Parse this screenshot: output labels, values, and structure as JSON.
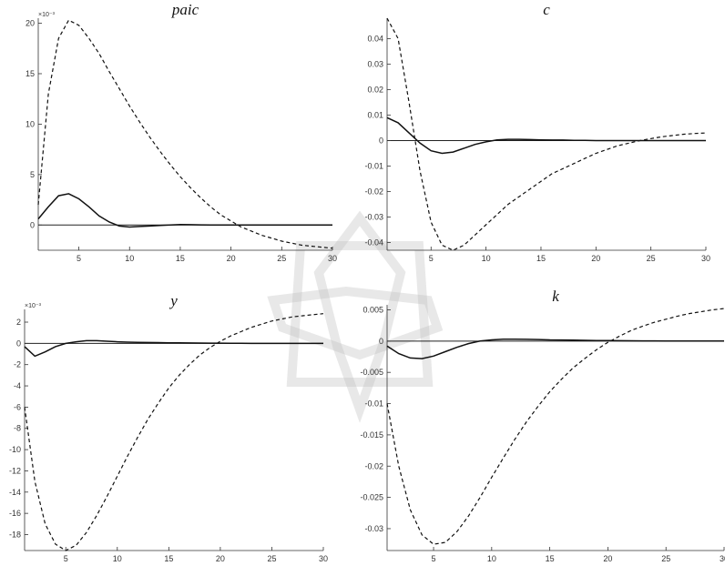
{
  "chart_data": [
    {
      "type": "line",
      "title": "paic",
      "exponent_label": "×10⁻³",
      "xlim": [
        1,
        30
      ],
      "ylim": [
        -2.5,
        20.5
      ],
      "xticks": [
        5,
        10,
        15,
        20,
        25,
        30
      ],
      "yticks": [
        0,
        5,
        10,
        15,
        20
      ],
      "ytick_labels": [
        "0",
        "5",
        "10",
        "15",
        "20"
      ],
      "series": [
        {
          "style": "solid",
          "x": [
            1,
            2,
            3,
            4,
            5,
            6,
            7,
            8,
            9,
            10,
            11,
            12,
            13,
            14,
            15,
            16,
            17,
            18,
            19,
            20,
            21,
            22,
            23,
            24,
            25,
            26,
            27,
            28,
            29,
            30
          ],
          "values": [
            0.6,
            1.8,
            2.9,
            3.1,
            2.6,
            1.8,
            0.9,
            0.3,
            -0.1,
            -0.2,
            -0.15,
            -0.1,
            -0.05,
            0,
            0.05,
            0.03,
            0.02,
            0.01,
            0,
            0,
            0,
            0,
            0,
            0,
            0,
            0,
            0,
            0,
            0,
            0
          ]
        },
        {
          "style": "dashed",
          "x": [
            1,
            2,
            3,
            4,
            5,
            6,
            7,
            8,
            9,
            10,
            11,
            12,
            13,
            14,
            15,
            16,
            17,
            18,
            19,
            20,
            21,
            22,
            23,
            24,
            25,
            26,
            27,
            28,
            29,
            30
          ],
          "values": [
            2.0,
            13.0,
            18.5,
            20.3,
            19.8,
            18.5,
            17.0,
            15.2,
            13.5,
            11.8,
            10.2,
            8.7,
            7.3,
            6.0,
            4.8,
            3.7,
            2.7,
            1.8,
            1.0,
            0.4,
            -0.2,
            -0.6,
            -1.0,
            -1.3,
            -1.6,
            -1.8,
            -2.0,
            -2.1,
            -2.2,
            -2.3
          ]
        }
      ]
    },
    {
      "type": "line",
      "title": "c",
      "exponent_label": "",
      "xlim": [
        1,
        30
      ],
      "ylim": [
        -0.043,
        0.048
      ],
      "xticks": [
        5,
        10,
        15,
        20,
        25,
        30
      ],
      "yticks": [
        0.04,
        0.03,
        0.02,
        0.01,
        0,
        -0.01,
        -0.02,
        -0.03,
        -0.04
      ],
      "ytick_labels": [
        "0.04",
        "0.03",
        "0.02",
        "0.01",
        "0",
        "-0.01",
        "-0.02",
        "-0.03",
        "-0.04"
      ],
      "series": [
        {
          "style": "solid",
          "x": [
            1,
            2,
            3,
            4,
            5,
            6,
            7,
            8,
            9,
            10,
            11,
            12,
            13,
            14,
            15,
            16,
            17,
            18,
            19,
            20,
            21,
            22,
            23,
            24,
            25,
            26,
            27,
            28,
            29,
            30
          ],
          "values": [
            0.009,
            0.007,
            0.003,
            -0.001,
            -0.004,
            -0.005,
            -0.0045,
            -0.003,
            -0.0015,
            -0.0005,
            0.0003,
            0.0005,
            0.0005,
            0.0004,
            0.0003,
            0.0002,
            0.0002,
            0.0001,
            0.0001,
            0,
            0,
            0,
            0,
            0,
            0,
            0,
            0,
            0,
            0,
            0
          ]
        },
        {
          "style": "dashed",
          "x": [
            1,
            2,
            3,
            4,
            5,
            6,
            7,
            8,
            9,
            10,
            11,
            12,
            13,
            14,
            15,
            16,
            17,
            18,
            19,
            20,
            21,
            22,
            23,
            24,
            25,
            26,
            27,
            28,
            29,
            30
          ],
          "values": [
            0.048,
            0.04,
            0.015,
            -0.012,
            -0.032,
            -0.041,
            -0.043,
            -0.041,
            -0.037,
            -0.033,
            -0.029,
            -0.025,
            -0.022,
            -0.019,
            -0.016,
            -0.013,
            -0.011,
            -0.009,
            -0.007,
            -0.005,
            -0.0035,
            -0.002,
            -0.001,
            0,
            0.0008,
            0.0015,
            0.002,
            0.0025,
            0.0028,
            0.003
          ]
        }
      ]
    },
    {
      "type": "line",
      "title": "y",
      "exponent_label": "×10⁻³",
      "xlim": [
        1,
        30
      ],
      "ylim": [
        -19.5,
        3.2
      ],
      "xticks": [
        5,
        10,
        15,
        20,
        25,
        30
      ],
      "yticks": [
        2,
        0,
        -2,
        -4,
        -6,
        -8,
        -10,
        -12,
        -14,
        -16,
        -18
      ],
      "ytick_labels": [
        "2",
        "0",
        "-2",
        "-4",
        "-6",
        "-8",
        "-10",
        "-12",
        "-14",
        "-16",
        "-18"
      ],
      "series": [
        {
          "style": "solid",
          "x": [
            1,
            2,
            3,
            4,
            5,
            6,
            7,
            8,
            9,
            10,
            11,
            12,
            13,
            14,
            15,
            16,
            17,
            18,
            19,
            20,
            21,
            22,
            23,
            24,
            25,
            26,
            27,
            28,
            29,
            30
          ],
          "values": [
            -0.3,
            -1.2,
            -0.8,
            -0.3,
            0,
            0.15,
            0.25,
            0.25,
            0.2,
            0.15,
            0.12,
            0.1,
            0.08,
            0.07,
            0.06,
            0.05,
            0.04,
            0.03,
            0.02,
            0.02,
            0.01,
            0.01,
            0,
            0,
            0,
            0,
            0,
            0,
            0,
            0
          ]
        },
        {
          "style": "dashed",
          "x": [
            1,
            2,
            3,
            4,
            5,
            6,
            7,
            8,
            9,
            10,
            11,
            12,
            13,
            14,
            15,
            16,
            17,
            18,
            19,
            20,
            21,
            22,
            23,
            24,
            25,
            26,
            27,
            28,
            29,
            30
          ],
          "values": [
            -6.0,
            -13.0,
            -17.0,
            -18.9,
            -19.5,
            -19.0,
            -17.8,
            -16.2,
            -14.4,
            -12.5,
            -10.6,
            -8.8,
            -7.1,
            -5.6,
            -4.2,
            -3.0,
            -2.0,
            -1.1,
            -0.4,
            0.2,
            0.7,
            1.1,
            1.5,
            1.8,
            2.1,
            2.3,
            2.5,
            2.6,
            2.7,
            2.8
          ]
        }
      ]
    },
    {
      "type": "line",
      "title": "k",
      "exponent_label": "",
      "xlim": [
        1,
        30
      ],
      "ylim": [
        -0.0335,
        0.0058
      ],
      "xticks": [
        5,
        10,
        15,
        20,
        25,
        30
      ],
      "yticks": [
        0.005,
        0,
        -0.005,
        -0.01,
        -0.015,
        -0.02,
        -0.025,
        -0.03
      ],
      "ytick_labels": [
        "0.005",
        "0",
        "-0.005",
        "-0.01",
        "-0.015",
        "-0.02",
        "-0.025",
        "-0.03"
      ],
      "series": [
        {
          "style": "solid",
          "x": [
            1,
            2,
            3,
            4,
            5,
            6,
            7,
            8,
            9,
            10,
            11,
            12,
            13,
            14,
            15,
            16,
            17,
            18,
            19,
            20,
            21,
            22,
            23,
            24,
            25,
            26,
            27,
            28,
            29,
            30
          ],
          "values": [
            -0.0008,
            -0.002,
            -0.0027,
            -0.0028,
            -0.0024,
            -0.0017,
            -0.001,
            -0.0004,
            0,
            0.0002,
            0.0003,
            0.0003,
            0.00028,
            0.00025,
            0.0002,
            0.00018,
            0.00015,
            0.00012,
            0.0001,
            8e-05,
            6e-05,
            5e-05,
            4e-05,
            3e-05,
            2e-05,
            1e-05,
            0,
            0,
            0,
            0
          ]
        },
        {
          "style": "dashed",
          "x": [
            1,
            2,
            3,
            4,
            5,
            6,
            7,
            8,
            9,
            10,
            11,
            12,
            13,
            14,
            15,
            16,
            17,
            18,
            19,
            20,
            21,
            22,
            23,
            24,
            25,
            26,
            27,
            28,
            29,
            30
          ],
          "values": [
            -0.01,
            -0.02,
            -0.027,
            -0.031,
            -0.0325,
            -0.0322,
            -0.0305,
            -0.028,
            -0.025,
            -0.0218,
            -0.0187,
            -0.0157,
            -0.0129,
            -0.0104,
            -0.0081,
            -0.0061,
            -0.0043,
            -0.0028,
            -0.0014,
            -0.0002,
            0.0008,
            0.0017,
            0.0024,
            0.003,
            0.0035,
            0.004,
            0.0044,
            0.0047,
            0.005,
            0.0052
          ]
        }
      ]
    }
  ]
}
